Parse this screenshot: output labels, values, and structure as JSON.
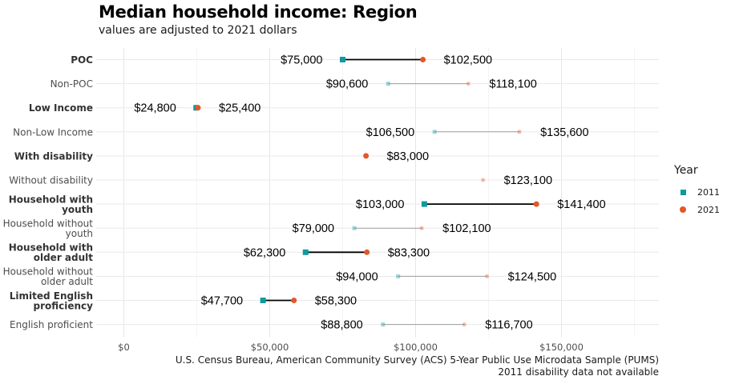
{
  "chart_data": {
    "type": "dumbbell",
    "title": "Median household income: Region",
    "subtitle": "values are adjusted to 2021 dollars",
    "caption": [
      "U.S. Census Bureau, American Community Survey (ACS) 5-Year Public Use Microdata Sample (PUMS)",
      "2011 disability data not available"
    ],
    "legend_title": "Year",
    "legend_position": "right",
    "series": [
      {
        "name": "2011",
        "color": "#11999e",
        "shape": "square"
      },
      {
        "name": "2021",
        "color": "#e2572b",
        "shape": "circle"
      }
    ],
    "xlim": [
      0,
      180000
    ],
    "x_ticks": [
      0,
      50000,
      100000,
      150000
    ],
    "x_tick_labels": [
      "$0",
      "$50,000",
      "$100,000",
      "$150,000"
    ],
    "grid": true,
    "rows": [
      {
        "label": "POC",
        "bold": true,
        "v2011": 75000,
        "v2021": 102500,
        "label2011": "$75,000",
        "label2021": "$102,500"
      },
      {
        "label": "Non-POC",
        "bold": false,
        "v2011": 90600,
        "v2021": 118100,
        "label2011": "$90,600",
        "label2021": "$118,100"
      },
      {
        "label": "Low Income",
        "bold": true,
        "v2011": 24800,
        "v2021": 25400,
        "label2011": "$24,800",
        "label2021": "$25,400"
      },
      {
        "label": "Non-Low Income",
        "bold": false,
        "v2011": 106500,
        "v2021": 135600,
        "label2011": "$106,500",
        "label2021": "$135,600"
      },
      {
        "label": "With disability",
        "bold": true,
        "v2011": null,
        "v2021": 83000,
        "label2011": "",
        "label2021": "$83,000"
      },
      {
        "label": "Without disability",
        "bold": false,
        "v2011": null,
        "v2021": 123100,
        "label2011": "",
        "label2021": "$123,100"
      },
      {
        "label": "Household with youth",
        "bold": true,
        "v2011": 103000,
        "v2021": 141400,
        "label2011": "$103,000",
        "label2021": "$141,400"
      },
      {
        "label": "Household without youth",
        "bold": false,
        "v2011": 79000,
        "v2021": 102100,
        "label2011": "$79,000",
        "label2021": "$102,100"
      },
      {
        "label": "Household with older adult",
        "bold": true,
        "v2011": 62300,
        "v2021": 83300,
        "label2011": "$62,300",
        "label2021": "$83,300"
      },
      {
        "label": "Household without older adult",
        "bold": false,
        "v2011": 94000,
        "v2021": 124500,
        "label2011": "$94,000",
        "label2021": "$124,500"
      },
      {
        "label": "Limited English proficiency",
        "bold": true,
        "v2011": 47700,
        "v2021": 58300,
        "label2011": "$47,700",
        "label2021": "$58,300"
      },
      {
        "label": "English proficient",
        "bold": false,
        "v2011": 88800,
        "v2021": 116700,
        "label2011": "$88,800",
        "label2021": "$116,700"
      }
    ]
  }
}
